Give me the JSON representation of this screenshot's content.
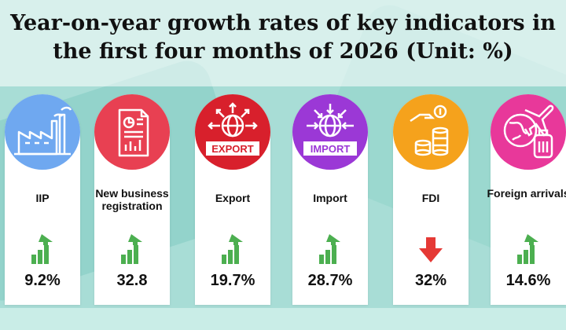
{
  "title_line1": "Year-on-year growth rates of  key indicators in",
  "title_line2": "the first four months of 2026 (Unit: %)",
  "indicators": [
    {
      "label": "IIP",
      "value": "9.2%",
      "trend": "up",
      "color": "#6fa8f0",
      "icon": "factory-icon"
    },
    {
      "label": "New business registration",
      "value": "32.8",
      "trend": "up",
      "color": "#e84052",
      "icon": "document-chart-icon"
    },
    {
      "label": "Export",
      "value": "19.7%",
      "trend": "up",
      "color": "#d8202c",
      "icon": "export-globe-icon",
      "badge": "EXPORT"
    },
    {
      "label": "Import",
      "value": "28.7%",
      "trend": "up",
      "color": "#9b38d6",
      "icon": "import-globe-icon",
      "badge": "IMPORT"
    },
    {
      "label": "FDI",
      "value": "32%",
      "trend": "down",
      "color": "#f5a21c",
      "icon": "coins-icon"
    },
    {
      "label": "Foreign arrivals",
      "value": "14.6%",
      "trend": "up",
      "color": "#e8389a",
      "icon": "travel-icon"
    }
  ],
  "trend_colors": {
    "up": "#4caf50",
    "down": "#e53935"
  }
}
